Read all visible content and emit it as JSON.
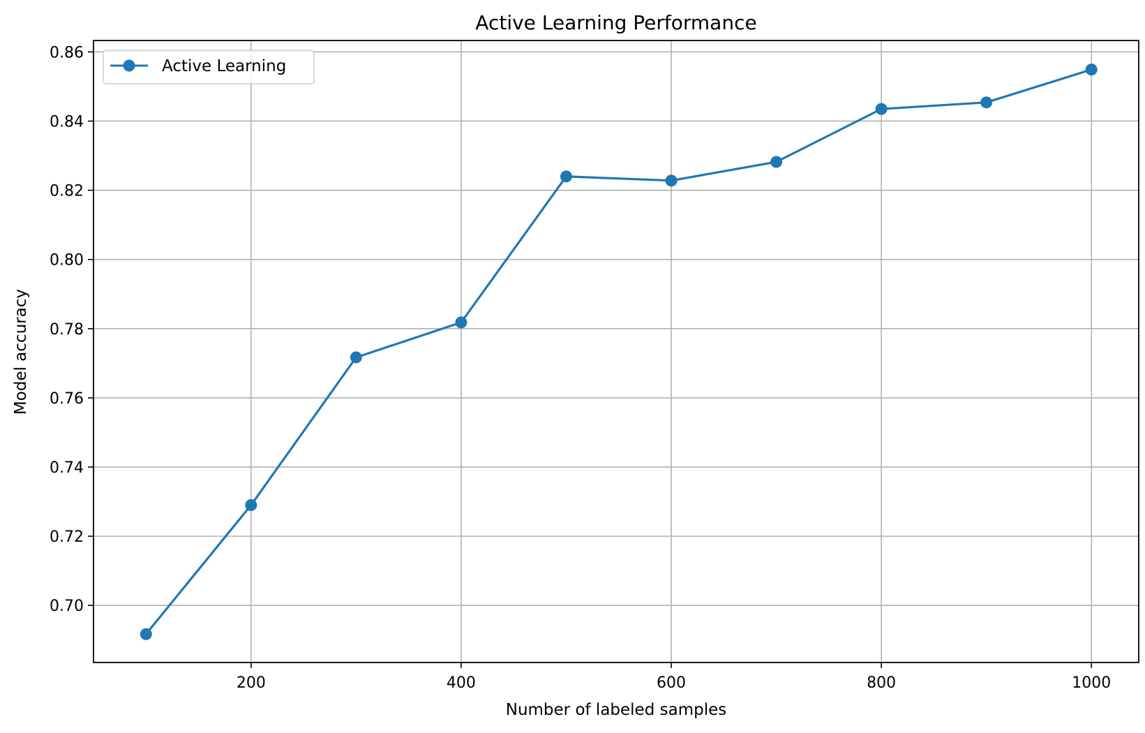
{
  "chart_data": {
    "type": "line",
    "title": "Active Learning Performance",
    "xlabel": "Number of labeled samples",
    "ylabel": "Model accuracy",
    "xlim": [
      50,
      1045
    ],
    "ylim": [
      0.6835,
      0.8633
    ],
    "x_ticks": [
      200,
      400,
      600,
      800,
      1000
    ],
    "y_ticks": [
      0.7,
      0.72,
      0.74,
      0.76,
      0.78,
      0.8,
      0.82,
      0.84,
      0.86
    ],
    "x_tick_labels": [
      "200",
      "400",
      "600",
      "800",
      "1000"
    ],
    "y_tick_labels": [
      "0.70",
      "0.72",
      "0.74",
      "0.76",
      "0.78",
      "0.80",
      "0.82",
      "0.84",
      "0.86"
    ],
    "grid": true,
    "legend_position": "top-left",
    "series": [
      {
        "name": "Active Learning",
        "color": "#1f77b4",
        "marker": "circle",
        "x": [
          100,
          200,
          300,
          400,
          500,
          600,
          700,
          800,
          900,
          1000
        ],
        "y": [
          0.6917,
          0.729,
          0.7717,
          0.7818,
          0.824,
          0.8228,
          0.8282,
          0.8435,
          0.8454,
          0.8549
        ]
      }
    ]
  }
}
